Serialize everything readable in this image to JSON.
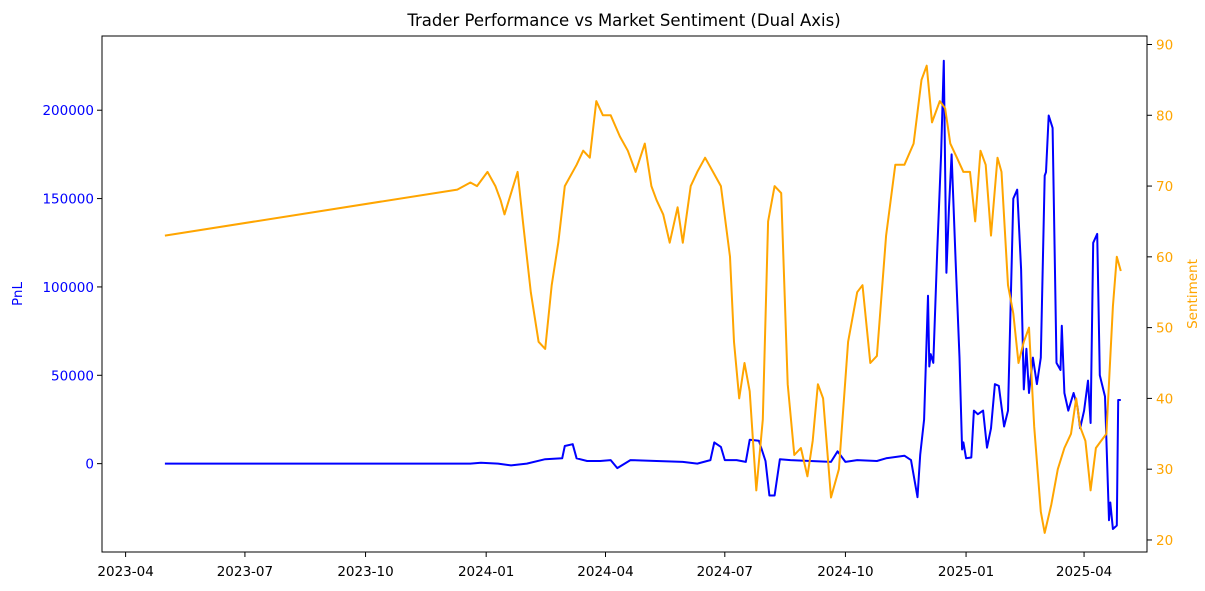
{
  "chart_data": {
    "type": "line",
    "title": "Trader Performance vs Market Sentiment (Dual Axis)",
    "xlabel": "",
    "x_ticks": [
      "2023-04",
      "2023-07",
      "2023-10",
      "2024-01",
      "2024-04",
      "2024-07",
      "2024-10",
      "2025-01",
      "2025-04"
    ],
    "x_tick_dates": [
      "2023-04-01",
      "2023-07-01",
      "2023-10-01",
      "2024-01-01",
      "2024-04-01",
      "2024-07-01",
      "2024-10-01",
      "2025-01-01",
      "2025-04-01"
    ],
    "xlim": [
      "2023-03-14",
      "2025-05-19"
    ],
    "left_axis": {
      "label": "PnL",
      "color": "#0000ff",
      "ylim": [
        -50000,
        242000
      ],
      "ticks": [
        0,
        50000,
        100000,
        150000,
        200000
      ],
      "tick_labels": [
        "0",
        "50000",
        "100000",
        "150000",
        "200000"
      ]
    },
    "right_axis": {
      "label": "Sentiment",
      "color": "#ffa500",
      "ylim": [
        18.3,
        91.2
      ],
      "ticks": [
        20,
        30,
        40,
        50,
        60,
        70,
        80,
        90
      ],
      "tick_labels": [
        "20",
        "30",
        "40",
        "50",
        "60",
        "70",
        "80",
        "90"
      ]
    },
    "grid": false,
    "series": [
      {
        "axis": "left",
        "color": "#0000ff",
        "points": [
          [
            "2023-05-01",
            0
          ],
          [
            "2023-12-20",
            0
          ],
          [
            "2023-12-28",
            500
          ],
          [
            "2024-01-10",
            0
          ],
          [
            "2024-01-20",
            -1000
          ],
          [
            "2024-02-01",
            0
          ],
          [
            "2024-02-15",
            2500
          ],
          [
            "2024-02-28",
            3000
          ],
          [
            "2024-03-01",
            10000
          ],
          [
            "2024-03-07",
            11000
          ],
          [
            "2024-03-10",
            3000
          ],
          [
            "2024-03-18",
            1500
          ],
          [
            "2024-03-28",
            1500
          ],
          [
            "2024-04-05",
            2000
          ],
          [
            "2024-04-10",
            -2500
          ],
          [
            "2024-04-20",
            2000
          ],
          [
            "2024-05-10",
            1500
          ],
          [
            "2024-05-30",
            1000
          ],
          [
            "2024-06-10",
            0
          ],
          [
            "2024-06-20",
            2000
          ],
          [
            "2024-06-23",
            12000
          ],
          [
            "2024-06-28",
            9500
          ],
          [
            "2024-07-01",
            2000
          ],
          [
            "2024-07-10",
            2000
          ],
          [
            "2024-07-17",
            1000
          ],
          [
            "2024-07-20",
            13500
          ],
          [
            "2024-07-27",
            13000
          ],
          [
            "2024-08-01",
            1500
          ],
          [
            "2024-08-04",
            -18000
          ],
          [
            "2024-08-08",
            -18000
          ],
          [
            "2024-08-12",
            2500
          ],
          [
            "2024-08-20",
            2000
          ],
          [
            "2024-09-20",
            1000
          ],
          [
            "2024-09-25",
            7000
          ],
          [
            "2024-10-01",
            1000
          ],
          [
            "2024-10-10",
            2000
          ],
          [
            "2024-10-25",
            1500
          ],
          [
            "2024-11-01",
            3000
          ],
          [
            "2024-11-15",
            4500
          ],
          [
            "2024-11-20",
            2000
          ],
          [
            "2024-11-25",
            -19000
          ],
          [
            "2024-11-27",
            5000
          ],
          [
            "2024-11-30",
            25000
          ],
          [
            "2024-12-03",
            95000
          ],
          [
            "2024-12-04",
            55000
          ],
          [
            "2024-12-05",
            62000
          ],
          [
            "2024-12-07",
            57000
          ],
          [
            "2024-12-10",
            120000
          ],
          [
            "2024-12-13",
            175000
          ],
          [
            "2024-12-15",
            228000
          ],
          [
            "2024-12-17",
            108000
          ],
          [
            "2024-12-19",
            145000
          ],
          [
            "2024-12-21",
            175000
          ],
          [
            "2024-12-24",
            115000
          ],
          [
            "2024-12-27",
            60000
          ],
          [
            "2024-12-29",
            8000
          ],
          [
            "2024-12-30",
            12000
          ],
          [
            "2025-01-01",
            3000
          ],
          [
            "2025-01-05",
            3500
          ],
          [
            "2025-01-07",
            30000
          ],
          [
            "2025-01-10",
            28000
          ],
          [
            "2025-01-14",
            30000
          ],
          [
            "2025-01-17",
            9000
          ],
          [
            "2025-01-20",
            20000
          ],
          [
            "2025-01-23",
            45000
          ],
          [
            "2025-01-26",
            44000
          ],
          [
            "2025-01-30",
            21000
          ],
          [
            "2025-02-02",
            30000
          ],
          [
            "2025-02-06",
            150000
          ],
          [
            "2025-02-09",
            155000
          ],
          [
            "2025-02-12",
            110000
          ],
          [
            "2025-02-14",
            42000
          ],
          [
            "2025-02-16",
            65000
          ],
          [
            "2025-02-18",
            40000
          ],
          [
            "2025-02-21",
            60000
          ],
          [
            "2025-02-24",
            45000
          ],
          [
            "2025-02-27",
            60000
          ],
          [
            "2025-03-02",
            163000
          ],
          [
            "2025-03-03",
            165000
          ],
          [
            "2025-03-05",
            197000
          ],
          [
            "2025-03-08",
            190000
          ],
          [
            "2025-03-11",
            57000
          ],
          [
            "2025-03-14",
            53000
          ],
          [
            "2025-03-15",
            78000
          ],
          [
            "2025-03-17",
            40000
          ],
          [
            "2025-03-20",
            30000
          ],
          [
            "2025-03-24",
            40000
          ],
          [
            "2025-03-27",
            32000
          ],
          [
            "2025-03-29",
            20000
          ],
          [
            "2025-04-01",
            30000
          ],
          [
            "2025-04-04",
            47000
          ],
          [
            "2025-04-06",
            23000
          ],
          [
            "2025-04-08",
            125000
          ],
          [
            "2025-04-11",
            130000
          ],
          [
            "2025-04-13",
            50000
          ],
          [
            "2025-04-17",
            38000
          ],
          [
            "2025-04-20",
            -32000
          ],
          [
            "2025-04-21",
            -22000
          ],
          [
            "2025-04-23",
            -37000
          ],
          [
            "2025-04-26",
            -35000
          ],
          [
            "2025-04-27",
            36000
          ],
          [
            "2025-04-29",
            36000
          ]
        ]
      },
      {
        "axis": "right",
        "color": "#ffa500",
        "points": [
          [
            "2023-05-01",
            63
          ],
          [
            "2023-12-10",
            69.5
          ],
          [
            "2023-12-20",
            70.5
          ],
          [
            "2023-12-25",
            70
          ],
          [
            "2024-01-02",
            72
          ],
          [
            "2024-01-08",
            70
          ],
          [
            "2024-01-12",
            68
          ],
          [
            "2024-01-15",
            66
          ],
          [
            "2024-01-20",
            69
          ],
          [
            "2024-01-25",
            72
          ],
          [
            "2024-01-29",
            65
          ],
          [
            "2024-02-04",
            55
          ],
          [
            "2024-02-10",
            48
          ],
          [
            "2024-02-15",
            47
          ],
          [
            "2024-02-20",
            56
          ],
          [
            "2024-02-25",
            62
          ],
          [
            "2024-03-01",
            70
          ],
          [
            "2024-03-10",
            73
          ],
          [
            "2024-03-15",
            75
          ],
          [
            "2024-03-20",
            74
          ],
          [
            "2024-03-25",
            82
          ],
          [
            "2024-03-30",
            80
          ],
          [
            "2024-04-05",
            80
          ],
          [
            "2024-04-12",
            77
          ],
          [
            "2024-04-18",
            75
          ],
          [
            "2024-04-24",
            72
          ],
          [
            "2024-05-01",
            76
          ],
          [
            "2024-05-06",
            70
          ],
          [
            "2024-05-10",
            68
          ],
          [
            "2024-05-15",
            66
          ],
          [
            "2024-05-20",
            62
          ],
          [
            "2024-05-26",
            67
          ],
          [
            "2024-05-30",
            62
          ],
          [
            "2024-06-05",
            70
          ],
          [
            "2024-06-10",
            72
          ],
          [
            "2024-06-16",
            74
          ],
          [
            "2024-06-22",
            72
          ],
          [
            "2024-06-28",
            70
          ],
          [
            "2024-07-05",
            60
          ],
          [
            "2024-07-08",
            48
          ],
          [
            "2024-07-12",
            40
          ],
          [
            "2024-07-16",
            45
          ],
          [
            "2024-07-20",
            41
          ],
          [
            "2024-07-25",
            27
          ],
          [
            "2024-07-30",
            37
          ],
          [
            "2024-08-03",
            65
          ],
          [
            "2024-08-08",
            70
          ],
          [
            "2024-08-13",
            69
          ],
          [
            "2024-08-18",
            42
          ],
          [
            "2024-08-23",
            32
          ],
          [
            "2024-08-28",
            33
          ],
          [
            "2024-09-02",
            29
          ],
          [
            "2024-09-06",
            34
          ],
          [
            "2024-09-10",
            42
          ],
          [
            "2024-09-14",
            40
          ],
          [
            "2024-09-20",
            26
          ],
          [
            "2024-09-26",
            30
          ],
          [
            "2024-10-03",
            48
          ],
          [
            "2024-10-10",
            55
          ],
          [
            "2024-10-14",
            56
          ],
          [
            "2024-10-20",
            45
          ],
          [
            "2024-10-25",
            46
          ],
          [
            "2024-11-01",
            63
          ],
          [
            "2024-11-08",
            73
          ],
          [
            "2024-11-15",
            73
          ],
          [
            "2024-11-22",
            76
          ],
          [
            "2024-11-28",
            85
          ],
          [
            "2024-12-02",
            87
          ],
          [
            "2024-12-06",
            79
          ],
          [
            "2024-12-12",
            82
          ],
          [
            "2024-12-16",
            81
          ],
          [
            "2024-12-20",
            76
          ],
          [
            "2024-12-25",
            74
          ],
          [
            "2024-12-30",
            72
          ],
          [
            "2025-01-04",
            72
          ],
          [
            "2025-01-08",
            65
          ],
          [
            "2025-01-12",
            75
          ],
          [
            "2025-01-16",
            73
          ],
          [
            "2025-01-20",
            63
          ],
          [
            "2025-01-25",
            74
          ],
          [
            "2025-01-28",
            72
          ],
          [
            "2025-02-02",
            56
          ],
          [
            "2025-02-06",
            52
          ],
          [
            "2025-02-10",
            45
          ],
          [
            "2025-02-14",
            48
          ],
          [
            "2025-02-18",
            50
          ],
          [
            "2025-02-22",
            36
          ],
          [
            "2025-02-27",
            24
          ],
          [
            "2025-03-02",
            21
          ],
          [
            "2025-03-07",
            25
          ],
          [
            "2025-03-12",
            30
          ],
          [
            "2025-03-17",
            33
          ],
          [
            "2025-03-22",
            35
          ],
          [
            "2025-03-26",
            40
          ],
          [
            "2025-03-29",
            36
          ],
          [
            "2025-04-02",
            34
          ],
          [
            "2025-04-06",
            27
          ],
          [
            "2025-04-10",
            33
          ],
          [
            "2025-04-14",
            34
          ],
          [
            "2025-04-18",
            35
          ],
          [
            "2025-04-23",
            53
          ],
          [
            "2025-04-26",
            60
          ],
          [
            "2025-04-29",
            58
          ]
        ]
      }
    ]
  }
}
